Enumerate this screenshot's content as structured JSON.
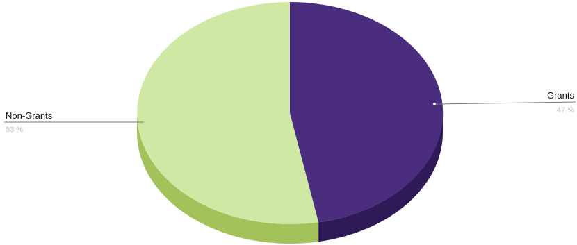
{
  "chart_data": {
    "type": "pie",
    "style": "3d",
    "slices": [
      {
        "label": "Grants",
        "value": 47,
        "value_label": "47 %",
        "color": "#4a2d7f",
        "side_color": "#2e1a57"
      },
      {
        "label": "Non-Grants",
        "value": 53,
        "value_label": "53 %",
        "color": "#cfe9a4",
        "side_color": "#a4c25a"
      }
    ],
    "title": "",
    "legend": "none"
  }
}
